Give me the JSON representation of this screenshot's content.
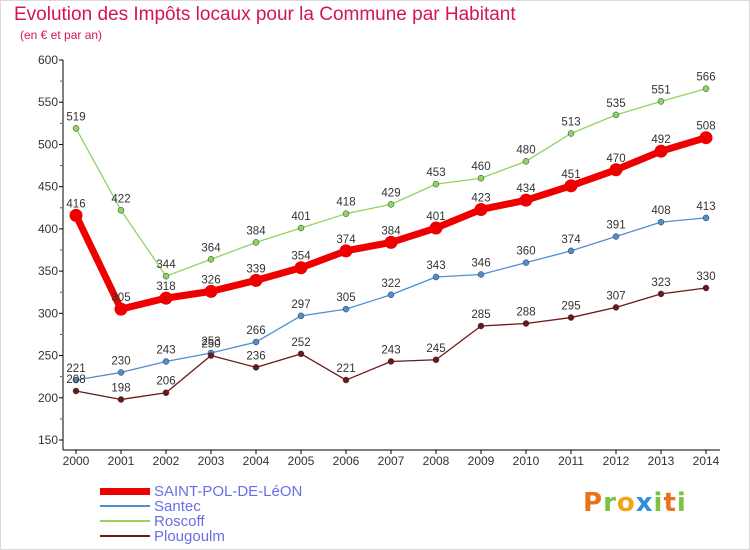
{
  "header": {
    "title": "Evolution des Impôts locaux pour la Commune par Habitant",
    "subtitle": "(en € et par an)"
  },
  "colors": {
    "title": "#d4145a",
    "legend_text": "#6a6ee6",
    "axis": "#000000",
    "axis_ticks": "#d4145a"
  },
  "logo": {
    "letters": [
      "P",
      "r",
      "o",
      "x",
      "i",
      "t",
      "i"
    ],
    "colors": [
      "#e8731a",
      "#7cc242",
      "#f3a51a",
      "#2f8fd8",
      "#7cc242",
      "#e8731a",
      "#7cc242"
    ]
  },
  "chart_data": {
    "type": "line",
    "title": "Evolution des Impôts locaux pour la Commune par Habitant",
    "subtitle": "(en € et par an)",
    "x": [
      "2000",
      "2001",
      "2002",
      "2003",
      "2004",
      "2005",
      "2006",
      "2007",
      "2008",
      "2009",
      "2010",
      "2011",
      "2012",
      "2013",
      "2014"
    ],
    "ylim": [
      150,
      600
    ],
    "yticks": [
      150,
      200,
      250,
      300,
      350,
      400,
      450,
      500,
      550,
      600
    ],
    "grid": false,
    "legend_position": "bottom-left",
    "series": [
      {
        "name": "SAINT-POL-DE-LéON",
        "color": "#ee0000",
        "values": [
          416,
          305,
          318,
          326,
          339,
          354,
          374,
          384,
          401,
          423,
          434,
          451,
          470,
          492,
          508
        ]
      },
      {
        "name": "Santec",
        "color": "#4f8fcf",
        "values": [
          221,
          230,
          243,
          253,
          266,
          297,
          305,
          322,
          343,
          346,
          360,
          374,
          391,
          408,
          413
        ]
      },
      {
        "name": "Roscoff",
        "color": "#8ed462",
        "values": [
          519,
          422,
          344,
          364,
          384,
          401,
          418,
          429,
          453,
          460,
          480,
          513,
          535,
          551,
          566
        ]
      },
      {
        "name": "Plougoulm",
        "color": "#6b1818",
        "values": [
          208,
          198,
          206,
          250,
          236,
          252,
          221,
          243,
          245,
          285,
          288,
          295,
          307,
          323,
          330
        ]
      }
    ]
  }
}
